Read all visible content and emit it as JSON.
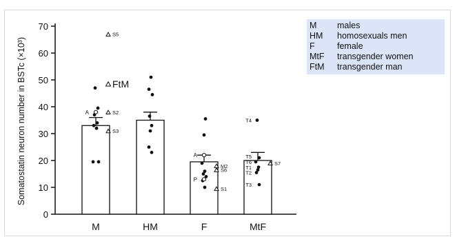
{
  "chart_data": {
    "type": "bar",
    "ylabel": "Somatostatin neuron number in BSTc (×10³)",
    "ylim": [
      0,
      70
    ],
    "yticks": [
      0,
      10,
      20,
      30,
      40,
      50,
      60,
      70
    ],
    "categories": [
      "M",
      "HM",
      "F",
      "MtF"
    ],
    "values": [
      33,
      35,
      19.5,
      20
    ],
    "errors": [
      3,
      3,
      2.5,
      3
    ],
    "points": [
      [
        {
          "y": 47
        },
        {
          "y": 39.5
        },
        {
          "y": 37
        },
        {
          "y": 34
        },
        {
          "y": 33
        },
        {
          "y": 32
        },
        {
          "y": 19.5
        },
        {
          "y": 19.5
        }
      ],
      [
        {
          "y": 51
        },
        {
          "y": 46.5
        },
        {
          "y": 44.5
        },
        {
          "y": 36.5
        },
        {
          "y": 33
        },
        {
          "y": 31
        },
        {
          "y": 25
        },
        {
          "y": 23
        }
      ],
      [
        {
          "y": 35.5
        },
        {
          "y": 29.5
        },
        {
          "y": 19
        },
        {
          "y": 16
        },
        {
          "y": 15
        },
        {
          "y": 14
        },
        {
          "y": 12.5
        },
        {
          "y": 10
        }
      ],
      [
        {
          "y": 35
        },
        {
          "y": 21
        },
        {
          "y": 19.5
        },
        {
          "y": 17.5
        },
        {
          "y": 16.5
        },
        {
          "y": 15.5
        },
        {
          "y": 11
        }
      ]
    ],
    "open_circles": [
      {
        "cat": 0,
        "y": 38,
        "label": "A"
      },
      {
        "cat": 2,
        "y": 22,
        "label": "A"
      },
      {
        "cat": 2,
        "y": 13,
        "label": "P"
      }
    ],
    "triangles": [
      {
        "cat": 0,
        "y": 67,
        "label": "S5"
      },
      {
        "cat": 0,
        "y": 48.5,
        "label": "FtM",
        "big": true
      },
      {
        "cat": 0,
        "y": 38,
        "label": "S2"
      },
      {
        "cat": 0,
        "y": 31,
        "label": "S3"
      },
      {
        "cat": 2,
        "y": 18,
        "label": "M2"
      },
      {
        "cat": 2,
        "y": 16.5,
        "label": "S6"
      },
      {
        "cat": 2,
        "y": 9.5,
        "label": "S1"
      },
      {
        "cat": 3,
        "y": 19,
        "label": "S7"
      }
    ],
    "point_labels": [
      {
        "cat": 3,
        "y": 35,
        "label": "T4"
      },
      {
        "cat": 3,
        "y": 21.5,
        "label": "T5"
      },
      {
        "cat": 3,
        "y": 19.5,
        "label": "T6"
      },
      {
        "cat": 3,
        "y": 17.5,
        "label": "T1"
      },
      {
        "cat": 3,
        "y": 15.5,
        "label": "T2"
      },
      {
        "cat": 3,
        "y": 11,
        "label": "T3"
      }
    ]
  },
  "legend": [
    {
      "key": "M",
      "desc": "males"
    },
    {
      "key": "HM",
      "desc": "homosexuals men"
    },
    {
      "key": "F",
      "desc": "female"
    },
    {
      "key": "MtF",
      "desc": "transgender women"
    },
    {
      "key": "FtM",
      "desc": "transgender man"
    }
  ],
  "colors": {
    "axis": "#111111",
    "bar_fill": "#ffffff",
    "legend_bg": "#dbe5f7"
  }
}
